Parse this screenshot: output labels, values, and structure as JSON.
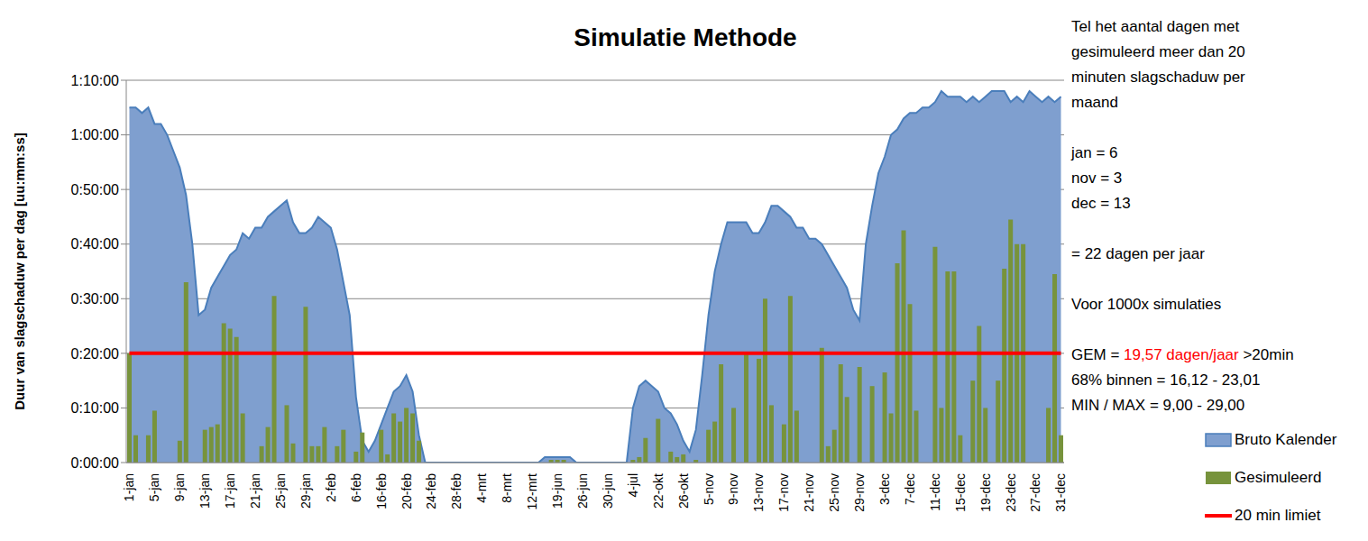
{
  "chart_data": {
    "type": "bar",
    "title": "Simulatie Methode",
    "y_label": "Duur van slagschaduw per dag [uu:mm:ss]",
    "categories": [
      "1-jan",
      null,
      null,
      null,
      "5-jan",
      null,
      null,
      null,
      "9-jan",
      null,
      null,
      null,
      "13-jan",
      null,
      null,
      null,
      "17-jan",
      null,
      null,
      null,
      "21-jan",
      null,
      null,
      null,
      "25-jan",
      null,
      null,
      null,
      "29-jan",
      null,
      null,
      null,
      "2-feb",
      null,
      null,
      null,
      "6-feb",
      null,
      null,
      null,
      "16-feb",
      null,
      null,
      null,
      "20-feb",
      null,
      null,
      null,
      "24-feb",
      null,
      null,
      null,
      "28-feb",
      null,
      null,
      null,
      "4-mrt",
      null,
      null,
      null,
      "8-mrt",
      null,
      null,
      null,
      "12-mrt",
      null,
      null,
      null,
      "19-jun",
      null,
      null,
      null,
      "26-jun",
      null,
      null,
      null,
      "30-jun",
      null,
      null,
      null,
      "4-jul",
      null,
      null,
      null,
      "22-okt",
      null,
      null,
      null,
      "26-okt",
      null,
      null,
      null,
      "5-nov",
      null,
      null,
      null,
      "9-nov",
      null,
      null,
      null,
      "13-nov",
      null,
      null,
      null,
      "17-nov",
      null,
      null,
      null,
      "21-nov",
      null,
      null,
      null,
      "25-nov",
      null,
      null,
      null,
      "29-nov",
      null,
      null,
      null,
      "3-dec",
      null,
      null,
      null,
      "7-dec",
      null,
      null,
      null,
      "11-dec",
      null,
      null,
      null,
      "15-dec",
      null,
      null,
      null,
      "19-dec",
      null,
      null,
      null,
      "23-dec",
      null,
      null,
      null,
      "27-dec",
      null,
      null,
      null,
      "31-dec"
    ],
    "series": [
      {
        "name": "Bruto Kalender",
        "type": "area",
        "color": "#7f9fcf",
        "values": [
          65,
          65,
          64,
          65,
          62,
          62,
          60,
          57,
          54,
          49,
          40,
          27,
          28,
          32,
          34,
          36,
          38,
          39,
          42,
          41,
          43,
          43,
          45,
          46,
          47,
          48,
          44,
          42,
          42,
          43,
          45,
          44,
          43,
          39,
          33,
          27,
          12,
          4,
          2,
          4,
          7,
          10,
          13,
          14,
          16,
          13,
          5,
          0,
          0,
          0,
          0,
          0,
          0,
          0,
          0,
          0,
          0,
          0,
          0,
          0,
          0,
          0,
          0,
          0,
          0,
          0,
          1,
          1,
          1,
          1,
          1,
          0,
          0,
          0,
          0,
          0,
          0,
          0,
          0,
          0,
          10,
          14,
          15,
          14,
          13,
          10,
          9,
          7,
          4,
          2,
          6,
          16,
          27,
          35,
          40,
          44,
          44,
          44,
          44,
          42,
          42,
          44,
          47,
          47,
          46,
          45,
          43,
          43,
          41,
          41,
          40,
          38,
          36,
          34,
          32,
          28,
          26,
          40,
          47,
          53,
          56,
          60,
          61,
          63,
          64,
          64,
          65,
          65,
          66,
          68,
          67,
          67,
          67,
          66,
          67,
          66,
          67,
          68,
          68,
          68,
          66,
          67,
          66,
          68,
          67,
          66,
          67,
          66,
          67
        ]
      },
      {
        "name": "Gesimuleerd",
        "type": "bar",
        "color": "#77933c",
        "values": [
          20,
          5,
          0,
          5,
          9.5,
          0,
          0,
          0,
          4,
          33,
          0,
          0,
          6,
          6.5,
          7,
          25.5,
          24.5,
          23,
          9,
          0,
          0,
          3,
          6.5,
          30.5,
          0,
          10.5,
          3.5,
          0,
          28.5,
          3,
          3,
          6.5,
          0,
          3,
          6,
          0,
          2,
          5.5,
          0,
          0,
          6,
          1.5,
          9,
          7.5,
          10,
          9,
          4,
          0,
          0,
          0,
          0,
          0,
          0,
          0,
          0,
          0,
          0,
          0,
          0,
          0,
          0,
          0,
          0,
          0,
          0,
          0,
          0,
          0.5,
          0.5,
          0.5,
          0,
          0,
          0,
          0,
          0,
          0,
          0,
          0,
          0,
          0,
          0.5,
          1,
          4.5,
          0,
          8,
          0,
          2,
          1,
          1.5,
          0,
          0.5,
          0,
          6,
          7.5,
          18,
          0,
          10,
          0,
          20,
          0,
          19,
          30,
          10.5,
          0,
          7,
          30.5,
          9.5,
          0,
          0,
          0,
          21,
          3,
          6,
          18,
          12,
          0,
          17.5,
          0,
          14,
          0,
          16.5,
          9,
          36.5,
          42.5,
          29,
          9.5,
          0,
          0,
          39.5,
          10,
          35,
          35,
          5,
          0,
          15,
          25,
          10,
          0,
          15,
          35.5,
          44.5,
          40,
          40,
          0,
          0,
          0,
          10,
          34.5,
          5
        ]
      },
      {
        "name": "20 min limiet",
        "type": "line",
        "color": "#ff0000",
        "values": [
          20,
          20,
          20,
          20,
          20,
          20,
          20,
          20,
          20,
          20,
          20,
          20,
          20,
          20,
          20,
          20,
          20,
          20,
          20,
          20,
          20,
          20,
          20,
          20,
          20,
          20,
          20,
          20,
          20,
          20,
          20,
          20,
          20,
          20,
          20,
          20,
          20,
          20,
          20,
          20,
          20,
          20,
          20,
          20,
          20,
          20,
          20,
          20,
          20,
          20,
          20,
          20,
          20,
          20,
          20,
          20,
          20,
          20,
          20,
          20,
          20,
          20,
          20,
          20,
          20,
          20,
          20,
          20,
          20,
          20,
          20,
          20,
          20,
          20,
          20,
          20,
          20,
          20,
          20,
          20,
          20,
          20,
          20,
          20,
          20,
          20,
          20,
          20,
          20,
          20,
          20,
          20,
          20,
          20,
          20,
          20,
          20,
          20,
          20,
          20,
          20,
          20,
          20,
          20,
          20,
          20,
          20,
          20,
          20,
          20,
          20,
          20,
          20,
          20,
          20,
          20,
          20,
          20,
          20,
          20,
          20,
          20,
          20,
          20,
          20,
          20,
          20,
          20,
          20,
          20,
          20,
          20,
          20,
          20,
          20,
          20,
          20,
          20,
          20,
          20,
          20,
          20,
          20,
          20,
          20,
          20,
          20,
          20,
          20
        ]
      }
    ],
    "ylim": [
      0,
      70
    ],
    "yticks": [
      {
        "value": 0,
        "label": "0:00:00"
      },
      {
        "value": 10,
        "label": "0:10:00"
      },
      {
        "value": 20,
        "label": "0:20:00"
      },
      {
        "value": 30,
        "label": "0:30:00"
      },
      {
        "value": 40,
        "label": "0:40:00"
      },
      {
        "value": 50,
        "label": "0:50:00"
      },
      {
        "value": 60,
        "label": "1:00:00"
      },
      {
        "value": 70,
        "label": "1:10:00"
      }
    ],
    "grid": true,
    "legend": "right",
    "annotations": [
      [
        "Tel het aantal dagen met",
        "gesimuleerd meer dan 20",
        "minuten slagschaduw per",
        "maand"
      ],
      [
        "jan = 6",
        "nov = 3",
        "dec = 13"
      ],
      [
        "= 22 dagen per jaar"
      ],
      [
        "Voor 1000x simulaties"
      ],
      [
        [
          {
            "text": "GEM = "
          },
          {
            "text": "19,57 dagen/jaar",
            "color": "#ff0000"
          },
          {
            "text": " >20min"
          }
        ],
        "68% binnen = 16,12 - 23,01",
        "MIN / MAX = 9,00 - 29,00"
      ]
    ]
  }
}
